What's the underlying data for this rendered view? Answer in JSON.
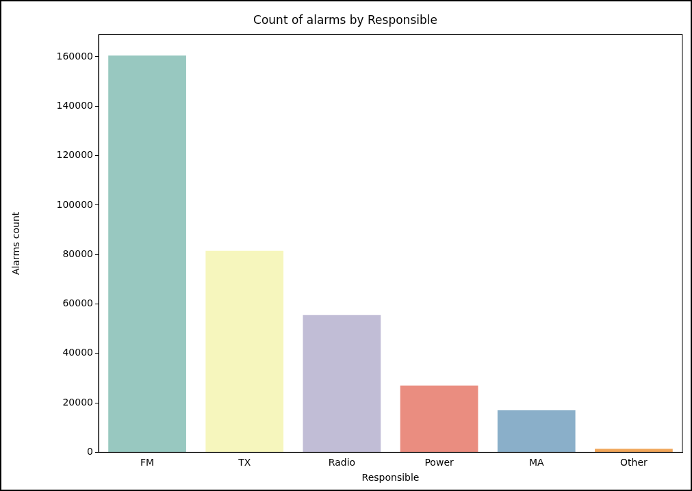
{
  "chart_data": {
    "type": "bar",
    "title": "Count of alarms by Responsible",
    "xlabel": "Responsible",
    "ylabel": "Alarms count",
    "categories": [
      "FM",
      "TX",
      "Radio",
      "Power",
      "MA",
      "Other"
    ],
    "values": [
      160500,
      81500,
      55500,
      27000,
      17000,
      1400
    ],
    "colors": [
      "#98c8c0",
      "#f6f6bd",
      "#c1bdd6",
      "#ea8d80",
      "#8aafc9",
      "#f0a65a"
    ],
    "ylim": [
      0,
      169000
    ],
    "yticks": [
      0,
      20000,
      40000,
      60000,
      80000,
      100000,
      120000,
      140000,
      160000
    ],
    "grid": false,
    "legend": false
  }
}
